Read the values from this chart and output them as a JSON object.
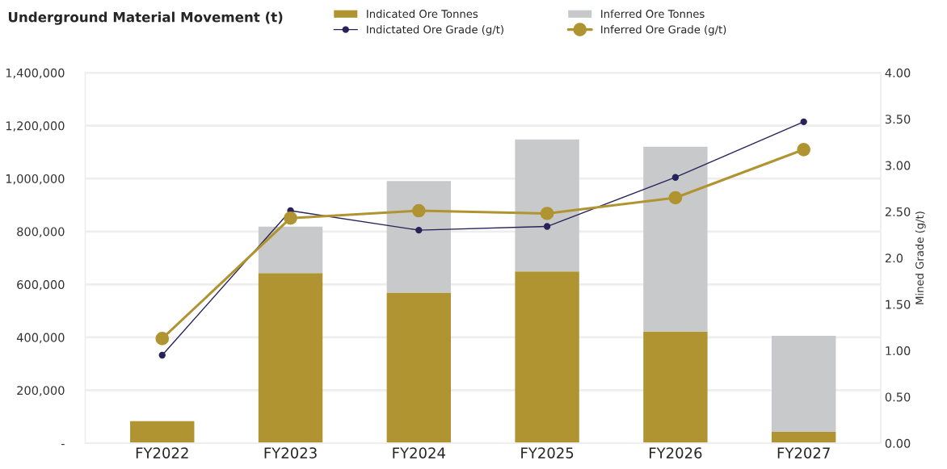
{
  "chart_data": {
    "type": "bar",
    "title": "Underground Material Movement (t)",
    "y2label": "Mined Grade (g/t)",
    "categories": [
      "FY2022",
      "FY2023",
      "FY2024",
      "FY2025",
      "FY2026",
      "FY2027"
    ],
    "stacked": true,
    "series": [
      {
        "name": "Indicated Ore Tonnes",
        "color": "#b09431",
        "values": [
          83000,
          643000,
          569000,
          649000,
          422000,
          43000
        ]
      },
      {
        "name": "Inferred Ore Tonnes",
        "color": "#c8c9cb",
        "values": [
          null,
          175000,
          422000,
          499000,
          698000,
          363000
        ]
      },
      {
        "name": "Indictated Ore Grade (g/t)",
        "type": "line",
        "axis": "y2",
        "marker": "circle",
        "color": "#27235a",
        "values": [
          0.95,
          2.51,
          2.3,
          2.34,
          2.87,
          3.47
        ]
      },
      {
        "name": "Inferred Ore Grade (g/t)",
        "type": "line",
        "axis": "y2",
        "marker": "circle",
        "color": "#b09431",
        "values": [
          1.13,
          2.43,
          2.51,
          2.48,
          2.65,
          3.17
        ]
      }
    ],
    "ylim": [
      0,
      1400000
    ],
    "yticks": [
      {
        "value": 0,
        "label": "-"
      },
      {
        "value": 200000,
        "label": "200,000"
      },
      {
        "value": 400000,
        "label": "400,000"
      },
      {
        "value": 600000,
        "label": "600,000"
      },
      {
        "value": 800000,
        "label": "800,000"
      },
      {
        "value": 1000000,
        "label": "1,000,000"
      },
      {
        "value": 1200000,
        "label": "1,200,000"
      },
      {
        "value": 1400000,
        "label": "1,400,000"
      }
    ],
    "y2lim": [
      0,
      4
    ],
    "y2ticks": [
      {
        "value": 0,
        "label": "0.00"
      },
      {
        "value": 0.5,
        "label": "0.50"
      },
      {
        "value": 1,
        "label": "1.00"
      },
      {
        "value": 1.5,
        "label": "1.50"
      },
      {
        "value": 2,
        "label": "2.0"
      },
      {
        "value": 2.5,
        "label": "2.50"
      },
      {
        "value": 3,
        "label": "3.00"
      },
      {
        "value": 3.5,
        "label": "3.50"
      },
      {
        "value": 4,
        "label": "4.00"
      }
    ],
    "grid": "y",
    "legend": "top"
  }
}
